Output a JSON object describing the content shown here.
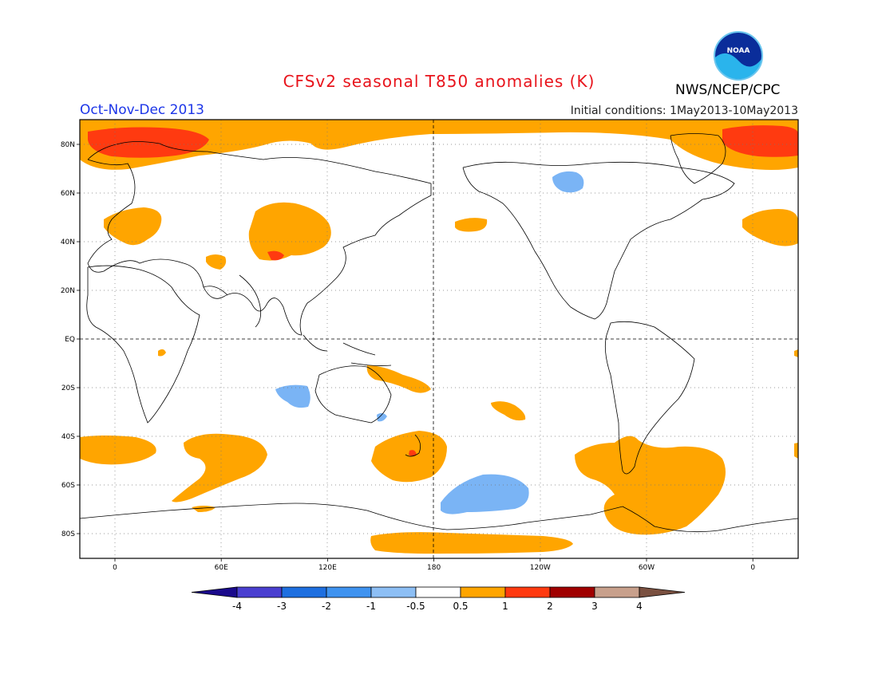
{
  "title": "CFSv2 seasonal T850 anomalies (K)",
  "agency": "NWS/NCEP/CPC",
  "season": "Oct-Nov-Dec 2013",
  "initial_conditions": "Initial conditions: 1May2013-10May2013",
  "logo_text": "NOAA",
  "lat_labels": [
    "80N",
    "60N",
    "40N",
    "20N",
    "EQ",
    "20S",
    "40S",
    "60S",
    "80S"
  ],
  "lon_labels": [
    "0",
    "60E",
    "120E",
    "180",
    "120W",
    "60W",
    "0"
  ],
  "colorbar": {
    "labels": [
      "-4",
      "-3",
      "-2",
      "-1",
      "-0.5",
      "0.5",
      "1",
      "2",
      "3",
      "4"
    ],
    "colors": [
      "#1a0a8c",
      "#4a3fd0",
      "#1e6fe0",
      "#3f93f0",
      "#8dbff5",
      "#ffffff",
      "#ffa500",
      "#ff3a10",
      "#a00000",
      "#c8a08c",
      "#7a5040"
    ]
  }
}
